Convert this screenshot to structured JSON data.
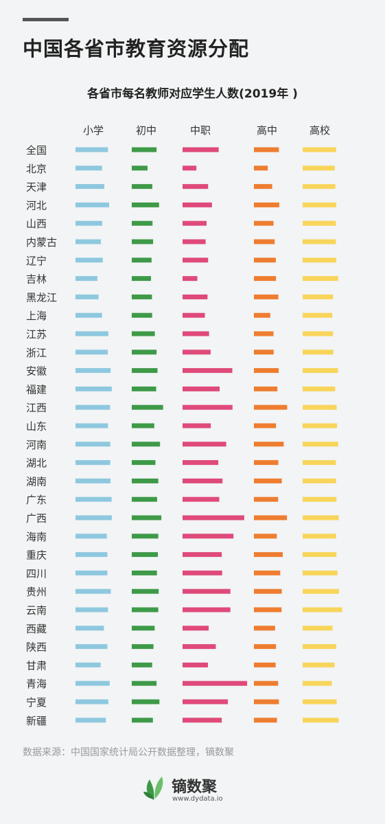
{
  "header": {
    "title": "中国各省市教育资源分配"
  },
  "source_text": "数据来源：中国国家统计局公开数据整理，镝数聚",
  "brand": {
    "name": "镝数聚",
    "url": "www.dydata.io"
  },
  "colors": {
    "primary": "#8ec8df",
    "junior": "#3e9a48",
    "vocational": "#df4a7a",
    "senior": "#ee7d30",
    "college": "#f8d55a"
  },
  "chart_data": {
    "type": "bar",
    "title": "各省市每名教师对应学生人数(2019年 )",
    "categories": [
      "全国",
      "北京",
      "天津",
      "河北",
      "山西",
      "内蒙古",
      "辽宁",
      "吉林",
      "黑龙江",
      "上海",
      "江苏",
      "浙江",
      "安徽",
      "福建",
      "江西",
      "山东",
      "河南",
      "湖北",
      "湖南",
      "广东",
      "广西",
      "海南",
      "重庆",
      "四川",
      "贵州",
      "云南",
      "西藏",
      "陕西",
      "甘肃",
      "青海",
      "宁夏",
      "新疆"
    ],
    "series": [
      {
        "name": "小学",
        "color": "#8ec8df",
        "values": [
          16.9,
          13.8,
          15.0,
          17.5,
          13.9,
          13.2,
          14.2,
          11.4,
          12.0,
          13.8,
          17.1,
          16.8,
          18.3,
          18.9,
          18.0,
          16.9,
          18.1,
          18.1,
          18.2,
          18.8,
          18.9,
          16.3,
          16.6,
          16.6,
          18.4,
          16.9,
          14.8,
          16.6,
          13.1,
          17.8,
          17.1,
          15.8
        ]
      },
      {
        "name": "初中",
        "color": "#3e9a48",
        "values": [
          12.9,
          8.2,
          10.7,
          14.2,
          10.8,
          11.1,
          10.3,
          10.0,
          10.5,
          10.6,
          12.0,
          12.9,
          13.4,
          12.7,
          16.3,
          11.7,
          14.7,
          12.3,
          13.8,
          13.2,
          15.4,
          13.8,
          13.6,
          13.1,
          14.0,
          13.8,
          11.9,
          11.3,
          10.6,
          12.9,
          14.4,
          11.0
        ]
      },
      {
        "name": "中职",
        "color": "#df4a7a",
        "values": [
          18.8,
          7.2,
          13.3,
          15.3,
          12.5,
          12.0,
          13.3,
          7.7,
          13.0,
          11.6,
          13.8,
          14.6,
          25.9,
          19.3,
          26.0,
          14.7,
          22.7,
          18.6,
          20.8,
          19.1,
          32.1,
          26.5,
          20.4,
          20.6,
          24.9,
          24.9,
          13.6,
          17.3,
          13.2,
          33.6,
          23.6,
          20.4
        ]
      },
      {
        "name": "高中",
        "color": "#ee7d30",
        "values": [
          13.0,
          7.2,
          9.5,
          13.2,
          10.2,
          10.8,
          11.4,
          11.5,
          12.7,
          8.5,
          10.2,
          10.3,
          12.9,
          12.2,
          17.3,
          11.5,
          15.5,
          12.7,
          14.5,
          12.6,
          17.2,
          11.9,
          15.0,
          13.7,
          14.5,
          14.4,
          11.0,
          11.5,
          11.3,
          12.6,
          13.0,
          12.0
        ]
      },
      {
        "name": "高校",
        "color": "#f8d55a",
        "values": [
          17.4,
          16.7,
          17.0,
          17.5,
          17.3,
          17.3,
          17.5,
          18.5,
          15.8,
          15.4,
          15.8,
          16.0,
          18.4,
          16.9,
          17.7,
          17.9,
          18.5,
          17.3,
          17.4,
          17.6,
          18.8,
          17.4,
          17.6,
          18.1,
          18.9,
          20.6,
          15.6,
          17.5,
          16.6,
          15.2,
          17.7,
          18.7
        ]
      }
    ]
  }
}
